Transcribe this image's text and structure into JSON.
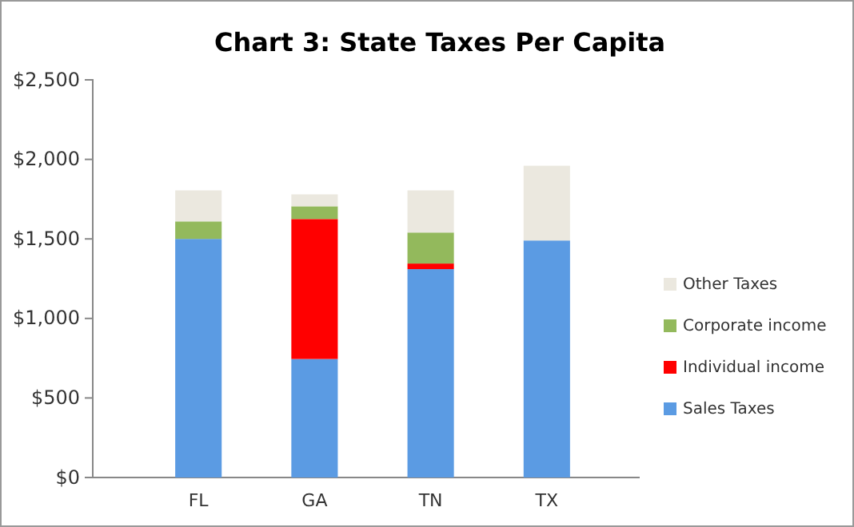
{
  "chart_data": {
    "type": "bar",
    "title": "Chart 3: State Taxes Per Capita",
    "categories": [
      "FL",
      "GA",
      "TN",
      "TX"
    ],
    "stacked": true,
    "series": [
      {
        "name": "Sales Taxes",
        "color": "#5b9be3",
        "values": [
          1500,
          745,
          1310,
          1490
        ]
      },
      {
        "name": "Individual income",
        "color": "#ff0000",
        "values": [
          0,
          880,
          35,
          0
        ]
      },
      {
        "name": "Corporate income",
        "color": "#93b95c",
        "values": [
          110,
          80,
          195,
          0
        ]
      },
      {
        "name": "Other Taxes",
        "color": "#ebe8df",
        "values": [
          195,
          75,
          265,
          470
        ]
      }
    ],
    "ylim": [
      0,
      2500
    ],
    "yticks": [
      {
        "value": 0,
        "label": "$0"
      },
      {
        "value": 500,
        "label": "$500"
      },
      {
        "value": 1000,
        "label": "$1,000"
      },
      {
        "value": 1500,
        "label": "$1,500"
      },
      {
        "value": 2000,
        "label": "$2,000"
      },
      {
        "value": 2500,
        "label": "$2,500"
      }
    ],
    "grid": false,
    "legend": "right"
  }
}
